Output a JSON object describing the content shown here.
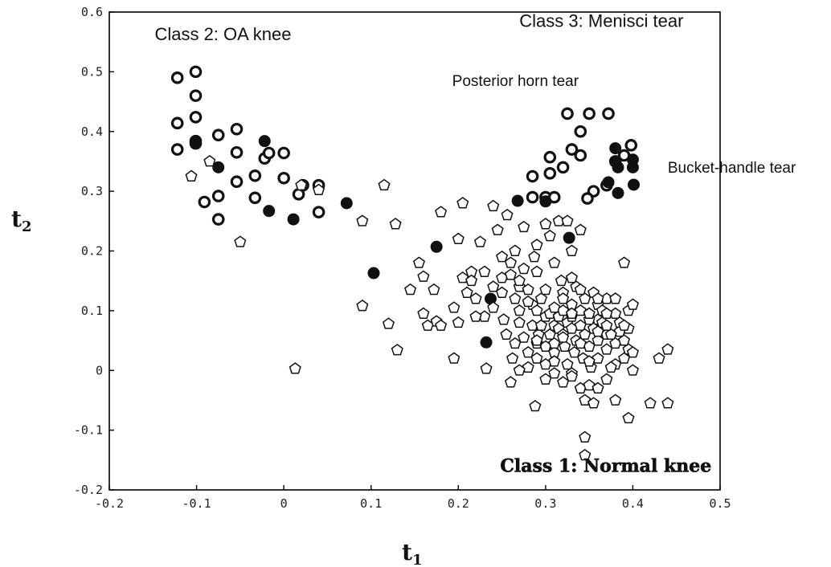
{
  "chart_data": {
    "type": "scatter",
    "xlabel": "t",
    "xlabel_sub": "1",
    "ylabel": "t",
    "ylabel_sub": "2",
    "xlim": [
      -0.2,
      0.5
    ],
    "ylim": [
      -0.2,
      0.6
    ],
    "xticks": [
      -0.2,
      -0.1,
      0,
      0.1,
      0.2,
      0.3,
      0.4,
      0.5
    ],
    "xtick_labels": [
      "-0.2",
      "-0.1",
      "0",
      "0.1",
      "0.2",
      "0.3",
      "0.4",
      "0.5"
    ],
    "yticks": [
      -0.2,
      -0.1,
      0,
      0.1,
      0.2,
      0.3,
      0.4,
      0.5,
      0.6
    ],
    "ytick_labels": [
      "-0.2",
      "-0.1",
      "0",
      "0.1",
      "0.2",
      "0.3",
      "0.4",
      "0.5",
      "0.6"
    ],
    "grid": false,
    "annotations": [
      {
        "text": "Class 2: OA knee",
        "x": -0.148,
        "y": 0.553,
        "style": "large"
      },
      {
        "text": "Class 3: Menisci tear",
        "x": 0.27,
        "y": 0.575,
        "style": "large"
      },
      {
        "text": "Posterior horn tear",
        "x": 0.193,
        "y": 0.476,
        "style": "small"
      },
      {
        "text": "Bucket-handle tear",
        "x": 0.44,
        "y": 0.331,
        "style": "small"
      },
      {
        "text": "Class 1: Normal knee",
        "x": 0.248,
        "y": -0.17,
        "style": "bold"
      }
    ],
    "series": [
      {
        "marker": "thick-open-circle",
        "color": "#111111",
        "points": [
          [
            -0.122,
            0.49
          ],
          [
            -0.101,
            0.5
          ],
          [
            -0.101,
            0.46
          ],
          [
            -0.101,
            0.424
          ],
          [
            -0.122,
            0.414
          ],
          [
            -0.101,
            0.384
          ],
          [
            -0.101,
            0.38
          ],
          [
            -0.122,
            0.37
          ],
          [
            -0.075,
            0.394
          ],
          [
            -0.054,
            0.404
          ],
          [
            -0.054,
            0.365
          ],
          [
            -0.075,
            0.292
          ],
          [
            -0.091,
            0.282
          ],
          [
            -0.075,
            0.253
          ],
          [
            -0.054,
            0.316
          ],
          [
            -0.033,
            0.289
          ],
          [
            -0.033,
            0.326
          ],
          [
            -0.022,
            0.355
          ],
          [
            -0.017,
            0.364
          ],
          [
            0.0,
            0.364
          ],
          [
            0.0,
            0.322
          ],
          [
            0.022,
            0.31
          ],
          [
            0.017,
            0.295
          ],
          [
            0.04,
            0.31
          ],
          [
            0.04,
            0.265
          ],
          [
            0.35,
            0.43
          ],
          [
            0.325,
            0.43
          ],
          [
            0.34,
            0.4
          ],
          [
            0.33,
            0.37
          ],
          [
            0.305,
            0.357
          ],
          [
            0.285,
            0.325
          ],
          [
            0.305,
            0.33
          ],
          [
            0.32,
            0.34
          ],
          [
            0.34,
            0.36
          ],
          [
            0.372,
            0.43
          ],
          [
            0.38,
            0.35
          ],
          [
            0.39,
            0.36
          ],
          [
            0.398,
            0.377
          ],
          [
            0.285,
            0.29
          ],
          [
            0.3,
            0.29
          ],
          [
            0.31,
            0.29
          ],
          [
            0.355,
            0.3
          ],
          [
            0.37,
            0.31
          ],
          [
            0.348,
            0.288
          ]
        ]
      },
      {
        "marker": "filled-circle",
        "color": "#111111",
        "points": [
          [
            -0.101,
            0.383
          ],
          [
            -0.075,
            0.34
          ],
          [
            -0.022,
            0.384
          ],
          [
            -0.017,
            0.267
          ],
          [
            0.011,
            0.253
          ],
          [
            0.072,
            0.28
          ],
          [
            0.103,
            0.163
          ],
          [
            0.175,
            0.207
          ],
          [
            0.237,
            0.12
          ],
          [
            0.232,
            0.047
          ],
          [
            0.268,
            0.284
          ],
          [
            0.3,
            0.283
          ],
          [
            0.327,
            0.222
          ],
          [
            0.38,
            0.372
          ],
          [
            0.38,
            0.35
          ],
          [
            0.4,
            0.353
          ],
          [
            0.383,
            0.34
          ],
          [
            0.4,
            0.34
          ],
          [
            0.372,
            0.315
          ],
          [
            0.383,
            0.297
          ],
          [
            0.401,
            0.311
          ]
        ]
      },
      {
        "marker": "open-pentagon",
        "color": "#111111",
        "points": [
          [
            -0.106,
            0.325
          ],
          [
            -0.085,
            0.35
          ],
          [
            -0.05,
            0.215
          ],
          [
            0.013,
            0.003
          ],
          [
            0.02,
            0.31
          ],
          [
            0.04,
            0.302
          ],
          [
            0.09,
            0.25
          ],
          [
            0.09,
            0.108
          ],
          [
            0.115,
            0.31
          ],
          [
            0.12,
            0.078
          ],
          [
            0.13,
            0.034
          ],
          [
            0.128,
            0.245
          ],
          [
            0.145,
            0.135
          ],
          [
            0.155,
            0.18
          ],
          [
            0.16,
            0.095
          ],
          [
            0.16,
            0.157
          ],
          [
            0.165,
            0.075
          ],
          [
            0.172,
            0.135
          ],
          [
            0.175,
            0.082
          ],
          [
            0.18,
            0.075
          ],
          [
            0.18,
            0.265
          ],
          [
            0.195,
            0.105
          ],
          [
            0.195,
            0.02
          ],
          [
            0.2,
            0.08
          ],
          [
            0.2,
            0.22
          ],
          [
            0.205,
            0.28
          ],
          [
            0.205,
            0.155
          ],
          [
            0.21,
            0.13
          ],
          [
            0.215,
            0.165
          ],
          [
            0.22,
            0.12
          ],
          [
            0.225,
            0.215
          ],
          [
            0.232,
            0.003
          ],
          [
            0.24,
            0.275
          ],
          [
            0.24,
            0.14
          ],
          [
            0.245,
            0.235
          ],
          [
            0.25,
            0.19
          ],
          [
            0.25,
            0.155
          ],
          [
            0.252,
            0.085
          ],
          [
            0.256,
            0.26
          ],
          [
            0.26,
            0.16
          ],
          [
            0.265,
            0.2
          ],
          [
            0.265,
            0.12
          ],
          [
            0.27,
            0.14
          ],
          [
            0.275,
            0.17
          ],
          [
            0.28,
            0.135
          ],
          [
            0.285,
            0.11
          ],
          [
            0.287,
            0.19
          ],
          [
            0.29,
            0.21
          ],
          [
            0.29,
            0.165
          ],
          [
            0.295,
            0.12
          ],
          [
            0.3,
            0.245
          ],
          [
            0.305,
            0.225
          ],
          [
            0.31,
            0.18
          ],
          [
            0.315,
            0.25
          ],
          [
            0.318,
            0.15
          ],
          [
            0.32,
            0.13
          ],
          [
            0.325,
            0.25
          ],
          [
            0.33,
            0.2
          ],
          [
            0.33,
            0.11
          ],
          [
            0.335,
            0.14
          ],
          [
            0.34,
            0.235
          ],
          [
            0.345,
            0.12
          ],
          [
            0.355,
            0.13
          ],
          [
            0.36,
            0.11
          ],
          [
            0.36,
            0.085
          ],
          [
            0.365,
            0.1
          ],
          [
            0.37,
            0.12
          ],
          [
            0.37,
            0.06
          ],
          [
            0.38,
            0.095
          ],
          [
            0.385,
            0.065
          ],
          [
            0.39,
            0.18
          ],
          [
            0.395,
            0.1
          ],
          [
            0.395,
            0.035
          ],
          [
            0.255,
            0.06
          ],
          [
            0.262,
            0.02
          ],
          [
            0.265,
            0.045
          ],
          [
            0.27,
            0.08
          ],
          [
            0.275,
            0.055
          ],
          [
            0.28,
            0.005
          ],
          [
            0.285,
            0.075
          ],
          [
            0.29,
            0.02
          ],
          [
            0.29,
            0.1
          ],
          [
            0.292,
            0.06
          ],
          [
            0.295,
            0.075
          ],
          [
            0.3,
            0.09
          ],
          [
            0.3,
            0.04
          ],
          [
            0.305,
            0.06
          ],
          [
            0.305,
            0.095
          ],
          [
            0.31,
            0.075
          ],
          [
            0.31,
            0.03
          ],
          [
            0.315,
            0.07
          ],
          [
            0.315,
            0.09
          ],
          [
            0.32,
            0.06
          ],
          [
            0.32,
            0.1
          ],
          [
            0.322,
            0.04
          ],
          [
            0.325,
            0.08
          ],
          [
            0.325,
            0.01
          ],
          [
            0.33,
            0.07
          ],
          [
            0.33,
            0.09
          ],
          [
            0.333,
            0.03
          ],
          [
            0.335,
            0.05
          ],
          [
            0.34,
            0.075
          ],
          [
            0.34,
            0.1
          ],
          [
            0.343,
            0.02
          ],
          [
            0.345,
            0.06
          ],
          [
            0.35,
            0.085
          ],
          [
            0.35,
            0.04
          ],
          [
            0.352,
            0.005
          ],
          [
            0.355,
            0.07
          ],
          [
            0.36,
            0.05
          ],
          [
            0.36,
            0.02
          ],
          [
            0.365,
            0.08
          ],
          [
            0.37,
            0.035
          ],
          [
            0.375,
            0.06
          ],
          [
            0.38,
            0.045
          ],
          [
            0.38,
            0.01
          ],
          [
            0.385,
            0.08
          ],
          [
            0.39,
            0.05
          ],
          [
            0.395,
            0.07
          ],
          [
            0.4,
            0.03
          ],
          [
            0.4,
            0.0
          ],
          [
            0.26,
            -0.02
          ],
          [
            0.3,
            -0.015
          ],
          [
            0.31,
            -0.005
          ],
          [
            0.32,
            -0.02
          ],
          [
            0.33,
            -0.005
          ],
          [
            0.34,
            -0.03
          ],
          [
            0.345,
            -0.05
          ],
          [
            0.35,
            -0.025
          ],
          [
            0.355,
            -0.055
          ],
          [
            0.36,
            -0.03
          ],
          [
            0.37,
            -0.015
          ],
          [
            0.375,
            0.005
          ],
          [
            0.38,
            -0.05
          ],
          [
            0.395,
            -0.08
          ],
          [
            0.288,
            -0.06
          ],
          [
            0.345,
            -0.112
          ],
          [
            0.345,
            -0.142
          ],
          [
            0.42,
            -0.055
          ],
          [
            0.44,
            -0.055
          ],
          [
            0.43,
            0.02
          ],
          [
            0.44,
            0.035
          ],
          [
            0.27,
            0.0
          ],
          [
            0.28,
            0.03
          ],
          [
            0.29,
            0.045
          ],
          [
            0.3,
            0.01
          ],
          [
            0.31,
            0.015
          ],
          [
            0.32,
            0.055
          ],
          [
            0.33,
            -0.01
          ],
          [
            0.34,
            0.045
          ],
          [
            0.35,
            0.015
          ],
          [
            0.36,
            0.065
          ],
          [
            0.37,
            0.095
          ],
          [
            0.38,
            0.12
          ],
          [
            0.39,
            0.075
          ],
          [
            0.4,
            0.11
          ],
          [
            0.27,
            0.1
          ],
          [
            0.28,
            0.115
          ],
          [
            0.3,
            0.135
          ],
          [
            0.31,
            0.105
          ],
          [
            0.32,
            0.12
          ],
          [
            0.33,
            0.155
          ],
          [
            0.34,
            0.135
          ],
          [
            0.35,
            0.095
          ],
          [
            0.36,
            0.12
          ],
          [
            0.25,
            0.13
          ],
          [
            0.24,
            0.105
          ],
          [
            0.23,
            0.09
          ],
          [
            0.22,
            0.09
          ],
          [
            0.215,
            0.15
          ],
          [
            0.26,
            0.18
          ],
          [
            0.27,
            0.15
          ],
          [
            0.33,
            0.095
          ],
          [
            0.31,
            0.045
          ],
          [
            0.29,
            0.05
          ],
          [
            0.37,
            0.075
          ],
          [
            0.39,
            0.02
          ],
          [
            0.23,
            0.165
          ],
          [
            0.275,
            0.24
          ]
        ]
      }
    ]
  }
}
